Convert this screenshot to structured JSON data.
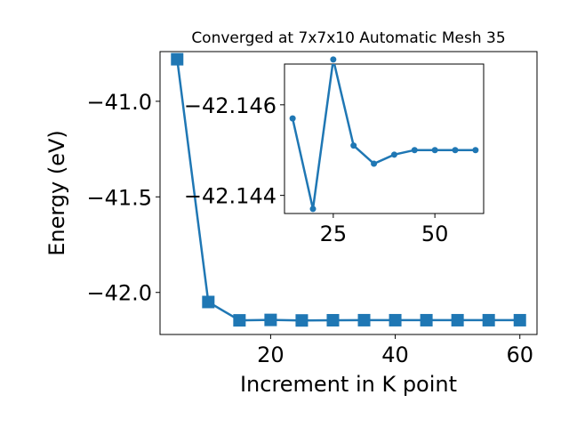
{
  "chart_data": [
    {
      "type": "line",
      "title": "Converged at 7x7x10 Automatic Mesh 35",
      "xlabel": "Increment in K point",
      "ylabel": "Energy (eV)",
      "xlim": [
        2.25,
        62.75
      ],
      "ylim": [
        -42.22,
        -40.74
      ],
      "x_ticks": [
        "20",
        "40",
        "60"
      ],
      "y_ticks": [
        "−41.0",
        "−41.5",
        "−42.0"
      ],
      "marker": "square",
      "grid": false,
      "color": "#1f77b4",
      "series": [
        {
          "x": [
            5,
            10,
            15,
            20,
            25,
            30,
            35,
            40,
            45,
            50,
            55,
            60
          ],
          "y": [
            -40.78,
            -42.05,
            -42.146,
            -42.1438,
            -42.1465,
            -42.1455,
            -42.1452,
            -42.1453,
            -42.1453,
            -42.1453,
            -42.1453,
            -42.1453
          ]
        }
      ]
    },
    {
      "type": "line",
      "title": "",
      "xlabel": "",
      "ylabel": "",
      "xlim": [
        13,
        62
      ],
      "ylim": [
        -42.1436,
        -42.1469
      ],
      "x_ticks": [
        "25",
        "50"
      ],
      "y_ticks": [
        "−42.146",
        "−42.144"
      ],
      "marker": "circle",
      "grid": false,
      "color": "#1f77b4",
      "series": [
        {
          "x": [
            15,
            20,
            25,
            30,
            35,
            40,
            45,
            50,
            55,
            60
          ],
          "y": [
            -42.1457,
            -42.1437,
            -42.147,
            -42.1451,
            -42.1447,
            -42.1449,
            -42.145,
            -42.145,
            -42.145,
            -42.145
          ]
        }
      ]
    }
  ]
}
